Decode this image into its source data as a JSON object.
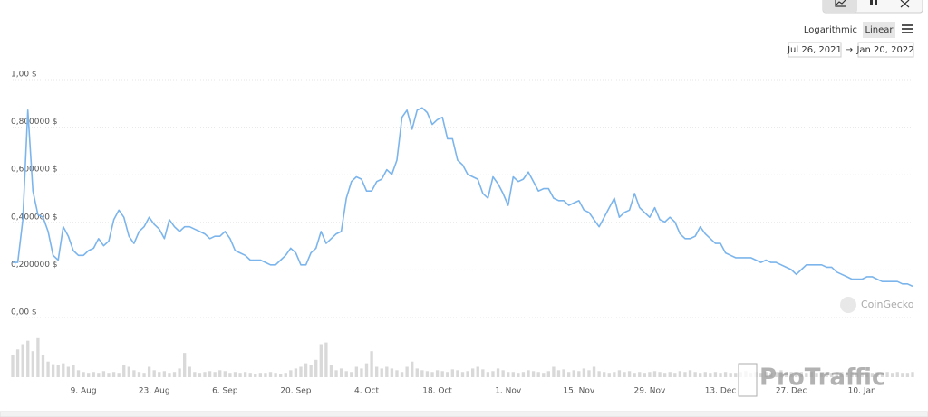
{
  "toolbar": {
    "log_label": "Logarithmic",
    "linear_label": "Linear",
    "range_start": "Jul 26, 2021",
    "range_separator": "→",
    "range_end": "Jan 20, 2022"
  },
  "watermarks": {
    "source": "CoinGecko",
    "overlay": "ProTraffic"
  },
  "chart_data": {
    "type": "line",
    "color": "#7cb5ec",
    "volume_color": "#d9d9d9",
    "log_scale": false,
    "grid": true,
    "x": [
      "2021-07-26",
      "2021-07-27",
      "2021-07-28",
      "2021-07-29",
      "2021-07-30",
      "2021-07-31",
      "2021-08-01",
      "2021-08-02",
      "2021-08-03",
      "2021-08-04",
      "2021-08-05",
      "2021-08-06",
      "2021-08-07",
      "2021-08-08",
      "2021-08-09",
      "2021-08-10",
      "2021-08-11",
      "2021-08-12",
      "2021-08-13",
      "2021-08-14",
      "2021-08-15",
      "2021-08-16",
      "2021-08-17",
      "2021-08-18",
      "2021-08-19",
      "2021-08-20",
      "2021-08-21",
      "2021-08-22",
      "2021-08-23",
      "2021-08-24",
      "2021-08-25",
      "2021-08-26",
      "2021-08-27",
      "2021-08-28",
      "2021-08-29",
      "2021-08-30",
      "2021-08-31",
      "2021-09-01",
      "2021-09-02",
      "2021-09-03",
      "2021-09-04",
      "2021-09-05",
      "2021-09-06",
      "2021-09-07",
      "2021-09-08",
      "2021-09-09",
      "2021-09-10",
      "2021-09-11",
      "2021-09-12",
      "2021-09-13",
      "2021-09-14",
      "2021-09-15",
      "2021-09-16",
      "2021-09-17",
      "2021-09-18",
      "2021-09-19",
      "2021-09-20",
      "2021-09-21",
      "2021-09-22",
      "2021-09-23",
      "2021-09-24",
      "2021-09-25",
      "2021-09-26",
      "2021-09-27",
      "2021-09-28",
      "2021-09-29",
      "2021-09-30",
      "2021-10-01",
      "2021-10-02",
      "2021-10-03",
      "2021-10-04",
      "2021-10-05",
      "2021-10-06",
      "2021-10-07",
      "2021-10-08",
      "2021-10-09",
      "2021-10-10",
      "2021-10-11",
      "2021-10-12",
      "2021-10-13",
      "2021-10-14",
      "2021-10-15",
      "2021-10-16",
      "2021-10-17",
      "2021-10-18",
      "2021-10-19",
      "2021-10-20",
      "2021-10-21",
      "2021-10-22",
      "2021-10-23",
      "2021-10-24",
      "2021-10-25",
      "2021-10-26",
      "2021-10-27",
      "2021-10-28",
      "2021-10-29",
      "2021-10-30",
      "2021-10-31",
      "2021-11-01",
      "2021-11-02",
      "2021-11-03",
      "2021-11-04",
      "2021-11-05",
      "2021-11-06",
      "2021-11-07",
      "2021-11-08",
      "2021-11-09",
      "2021-11-10",
      "2021-11-11",
      "2021-11-12",
      "2021-11-13",
      "2021-11-14",
      "2021-11-15",
      "2021-11-16",
      "2021-11-17",
      "2021-11-18",
      "2021-11-19",
      "2021-11-20",
      "2021-11-21",
      "2021-11-22",
      "2021-11-23",
      "2021-11-24",
      "2021-11-25",
      "2021-11-26",
      "2021-11-27",
      "2021-11-28",
      "2021-11-29",
      "2021-11-30",
      "2021-12-01",
      "2021-12-02",
      "2021-12-03",
      "2021-12-04",
      "2021-12-05",
      "2021-12-06",
      "2021-12-07",
      "2021-12-08",
      "2021-12-09",
      "2021-12-10",
      "2021-12-11",
      "2021-12-12",
      "2021-12-13",
      "2021-12-14",
      "2021-12-15",
      "2021-12-16",
      "2021-12-17",
      "2021-12-18",
      "2021-12-19",
      "2021-12-20",
      "2021-12-21",
      "2021-12-22",
      "2021-12-23",
      "2021-12-24",
      "2021-12-25",
      "2021-12-26",
      "2021-12-27",
      "2021-12-28",
      "2021-12-29",
      "2021-12-30",
      "2021-12-31",
      "2022-01-01",
      "2022-01-02",
      "2022-01-03",
      "2022-01-04",
      "2022-01-05",
      "2022-01-06",
      "2022-01-07",
      "2022-01-08",
      "2022-01-09",
      "2022-01-10",
      "2022-01-11",
      "2022-01-12",
      "2022-01-13",
      "2022-01-14",
      "2022-01-15",
      "2022-01-16",
      "2022-01-17",
      "2022-01-18",
      "2022-01-19",
      "2022-01-20"
    ],
    "values": [
      0.22,
      0.22,
      0.4,
      0.86,
      0.52,
      0.42,
      0.41,
      0.35,
      0.25,
      0.23,
      0.37,
      0.33,
      0.27,
      0.25,
      0.25,
      0.27,
      0.28,
      0.32,
      0.29,
      0.31,
      0.4,
      0.44,
      0.41,
      0.33,
      0.3,
      0.35,
      0.37,
      0.41,
      0.38,
      0.36,
      0.32,
      0.4,
      0.37,
      0.35,
      0.37,
      0.37,
      0.36,
      0.35,
      0.34,
      0.32,
      0.33,
      0.33,
      0.35,
      0.32,
      0.27,
      0.26,
      0.25,
      0.23,
      0.23,
      0.23,
      0.22,
      0.21,
      0.21,
      0.23,
      0.25,
      0.28,
      0.26,
      0.21,
      0.21,
      0.26,
      0.28,
      0.35,
      0.3,
      0.32,
      0.34,
      0.35,
      0.49,
      0.56,
      0.58,
      0.57,
      0.52,
      0.52,
      0.56,
      0.57,
      0.61,
      0.59,
      0.65,
      0.83,
      0.86,
      0.78,
      0.86,
      0.87,
      0.85,
      0.8,
      0.82,
      0.83,
      0.74,
      0.74,
      0.65,
      0.63,
      0.59,
      0.58,
      0.57,
      0.51,
      0.49,
      0.58,
      0.55,
      0.51,
      0.46,
      0.58,
      0.56,
      0.57,
      0.6,
      0.56,
      0.52,
      0.53,
      0.53,
      0.49,
      0.48,
      0.48,
      0.46,
      0.47,
      0.48,
      0.44,
      0.43,
      0.4,
      0.37,
      0.41,
      0.45,
      0.49,
      0.41,
      0.43,
      0.44,
      0.51,
      0.45,
      0.43,
      0.41,
      0.45,
      0.4,
      0.39,
      0.41,
      0.39,
      0.34,
      0.32,
      0.32,
      0.33,
      0.37,
      0.34,
      0.32,
      0.3,
      0.3,
      0.26,
      0.25,
      0.24,
      0.24,
      0.24,
      0.24,
      0.23,
      0.22,
      0.23,
      0.22,
      0.22,
      0.21,
      0.2,
      0.19,
      0.17,
      0.19,
      0.21,
      0.21,
      0.21,
      0.21,
      0.2,
      0.2,
      0.18,
      0.17,
      0.16,
      0.15,
      0.15,
      0.15,
      0.16,
      0.16,
      0.15,
      0.14,
      0.14,
      0.14,
      0.14,
      0.13,
      0.13,
      0.12
    ],
    "volume_values": [
      25,
      32,
      38,
      42,
      30,
      45,
      25,
      18,
      15,
      14,
      16,
      12,
      14,
      8,
      6,
      5,
      6,
      5,
      7,
      5,
      6,
      5,
      14,
      12,
      8,
      6,
      5,
      12,
      8,
      6,
      7,
      5,
      6,
      10,
      28,
      12,
      6,
      5,
      6,
      7,
      6,
      8,
      7,
      5,
      6,
      5,
      6,
      5,
      4,
      5,
      5,
      6,
      5,
      4,
      5,
      8,
      10,
      12,
      16,
      14,
      20,
      38,
      40,
      14,
      8,
      10,
      7,
      6,
      12,
      10,
      16,
      30,
      12,
      10,
      12,
      10,
      8,
      6,
      12,
      18,
      10,
      8,
      7,
      6,
      8,
      7,
      6,
      9,
      8,
      6,
      7,
      10,
      12,
      9,
      6,
      7,
      10,
      8,
      6,
      6,
      5,
      6,
      8,
      7,
      6,
      5,
      7,
      12,
      8,
      9,
      6,
      8,
      7,
      10,
      8,
      12,
      7,
      6,
      5,
      6,
      8,
      6,
      7,
      5,
      6,
      5,
      6,
      7,
      6,
      5,
      6,
      5,
      7,
      6,
      8,
      6,
      5,
      6,
      5,
      6,
      5,
      6,
      5,
      5,
      6,
      7,
      5,
      6,
      5,
      6,
      5,
      6,
      8,
      5,
      6,
      5,
      6,
      5,
      6,
      5,
      5,
      6,
      5,
      5,
      6,
      5,
      6,
      5,
      5,
      6,
      5,
      6,
      5,
      6,
      5,
      6,
      5,
      5,
      6
    ],
    "ylim": [
      0,
      1
    ],
    "yticks": [
      {
        "value": 0,
        "label": "0,00 $"
      },
      {
        "value": 0.2,
        "label": "0,200000 $"
      },
      {
        "value": 0.4,
        "label": "0,400000 $"
      },
      {
        "value": 0.6,
        "label": "0,600000 $"
      },
      {
        "value": 0.8,
        "label": "0,800000 $"
      },
      {
        "value": 1,
        "label": "1,00 $"
      }
    ],
    "y2lim": [
      0,
      50
    ],
    "xlim": [
      "2021-07-26",
      "2022-01-20"
    ],
    "xticks": [
      {
        "value": "2021-08-09",
        "label": "9. Aug"
      },
      {
        "value": "2021-08-23",
        "label": "23. Aug"
      },
      {
        "value": "2021-09-06",
        "label": "6. Sep"
      },
      {
        "value": "2021-09-20",
        "label": "20. Sep"
      },
      {
        "value": "2021-10-04",
        "label": "4. Oct"
      },
      {
        "value": "2021-10-18",
        "label": "18. Oct"
      },
      {
        "value": "2021-11-01",
        "label": "1. Nov"
      },
      {
        "value": "2021-11-15",
        "label": "15. Nov"
      },
      {
        "value": "2021-11-29",
        "label": "29. Nov"
      },
      {
        "value": "2021-12-13",
        "label": "13. Dec"
      },
      {
        "value": "2021-12-27",
        "label": "27. Dec"
      },
      {
        "value": "2022-01-10",
        "label": "10. Jan"
      }
    ]
  }
}
